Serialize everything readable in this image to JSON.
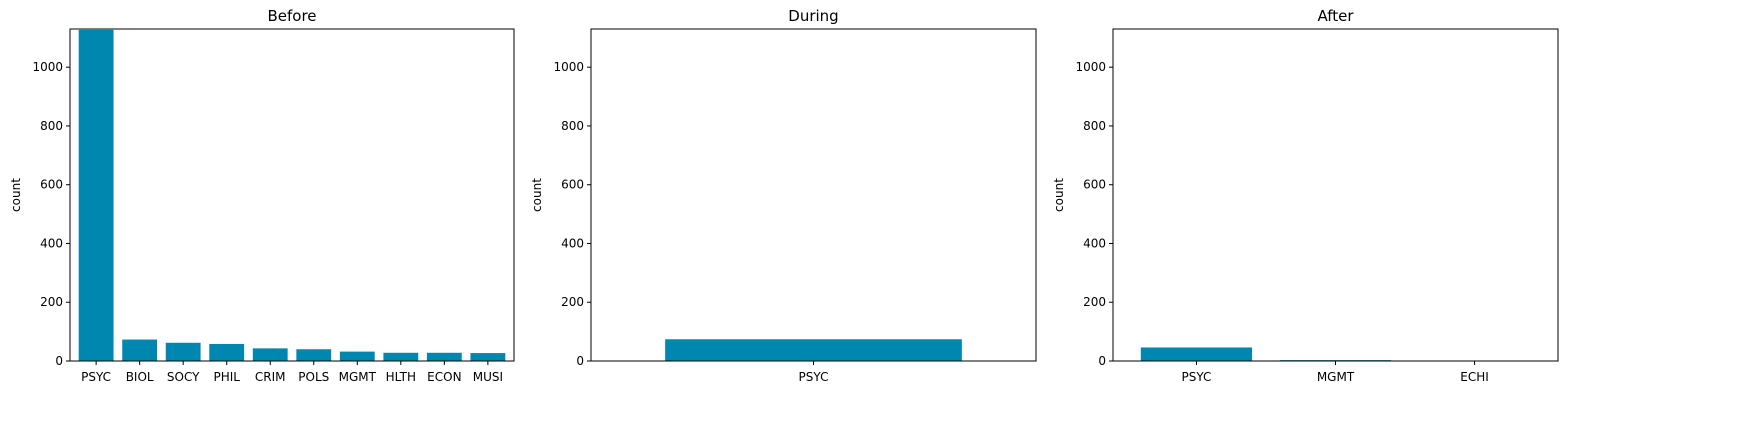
{
  "chart_data": [
    {
      "type": "bar",
      "title": "Before",
      "ylabel": "count",
      "xlabel": "",
      "ylim": [
        0,
        1130
      ],
      "yticks": [
        0,
        200,
        400,
        600,
        800,
        1000
      ],
      "color": "#0087b0",
      "grid": false,
      "categories": [
        "PSYC",
        "BIOL",
        "SOCY",
        "PHIL",
        "CRIM",
        "POLS",
        "MGMT",
        "HLTH",
        "ECON",
        "MUSI"
      ],
      "values": [
        1127,
        73,
        62,
        58,
        43,
        40,
        32,
        28,
        28,
        27
      ]
    },
    {
      "type": "bar",
      "title": "During",
      "ylabel": "count",
      "xlabel": "",
      "ylim": [
        0,
        1130
      ],
      "yticks": [
        0,
        200,
        400,
        600,
        800,
        1000
      ],
      "color": "#0087b0",
      "grid": false,
      "categories": [
        "PSYC"
      ],
      "values": [
        74
      ]
    },
    {
      "type": "bar",
      "title": "After",
      "ylabel": "count",
      "xlabel": "",
      "ylim": [
        0,
        1130
      ],
      "yticks": [
        0,
        200,
        400,
        600,
        800,
        1000
      ],
      "color": "#0087b0",
      "grid": false,
      "categories": [
        "PSYC",
        "MGMT",
        "ECHI"
      ],
      "values": [
        46,
        3,
        1
      ]
    }
  ]
}
